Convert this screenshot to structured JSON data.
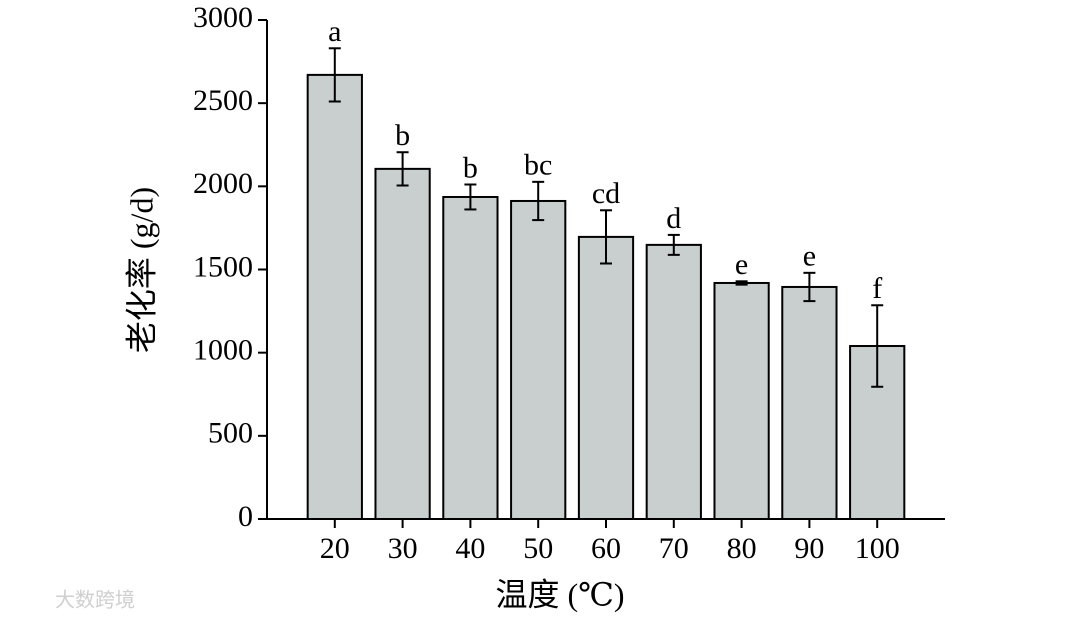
{
  "chart_data": {
    "type": "bar",
    "x_label": "温度 (℃)",
    "y_label": "老化率 (g/d)",
    "categories": [
      "20",
      "30",
      "40",
      "50",
      "60",
      "70",
      "80",
      "90",
      "100"
    ],
    "values": [
      2670,
      2105,
      1936,
      1912,
      1696,
      1648,
      1419,
      1395,
      1040
    ],
    "errors": [
      160,
      100,
      75,
      115,
      160,
      60,
      10,
      85,
      245
    ],
    "letters": [
      "a",
      "b",
      "b",
      "bc",
      "cd",
      "d",
      "e",
      "e",
      "f"
    ],
    "color": "#c9cecf",
    "ylim": [
      0,
      3000
    ],
    "yticks": [
      0,
      500,
      1000,
      1500,
      2000,
      2500,
      3000
    ],
    "watermark": "大数跨境"
  }
}
